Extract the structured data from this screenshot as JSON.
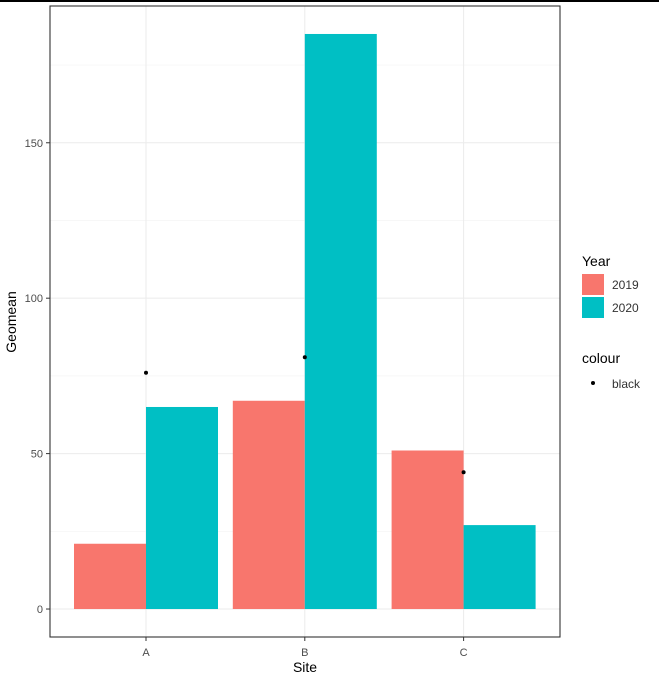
{
  "chart_data": {
    "type": "bar",
    "title": "",
    "xlabel": "Site",
    "ylabel": "Geomean",
    "categories": [
      "A",
      "B",
      "C"
    ],
    "series": [
      {
        "name": "2019",
        "color": "#F8766D",
        "values": [
          21,
          67,
          51
        ]
      },
      {
        "name": "2020",
        "color": "#00BFC4",
        "values": [
          65,
          185,
          27
        ]
      }
    ],
    "points": {
      "name": "black",
      "color": "#000000",
      "values": [
        76,
        81,
        44
      ]
    },
    "yticks": [
      0,
      50,
      100,
      150
    ],
    "ylim": [
      -9,
      194
    ],
    "grid": true,
    "legend": {
      "fill_title": "Year",
      "colour_title": "colour",
      "position": "right"
    }
  }
}
